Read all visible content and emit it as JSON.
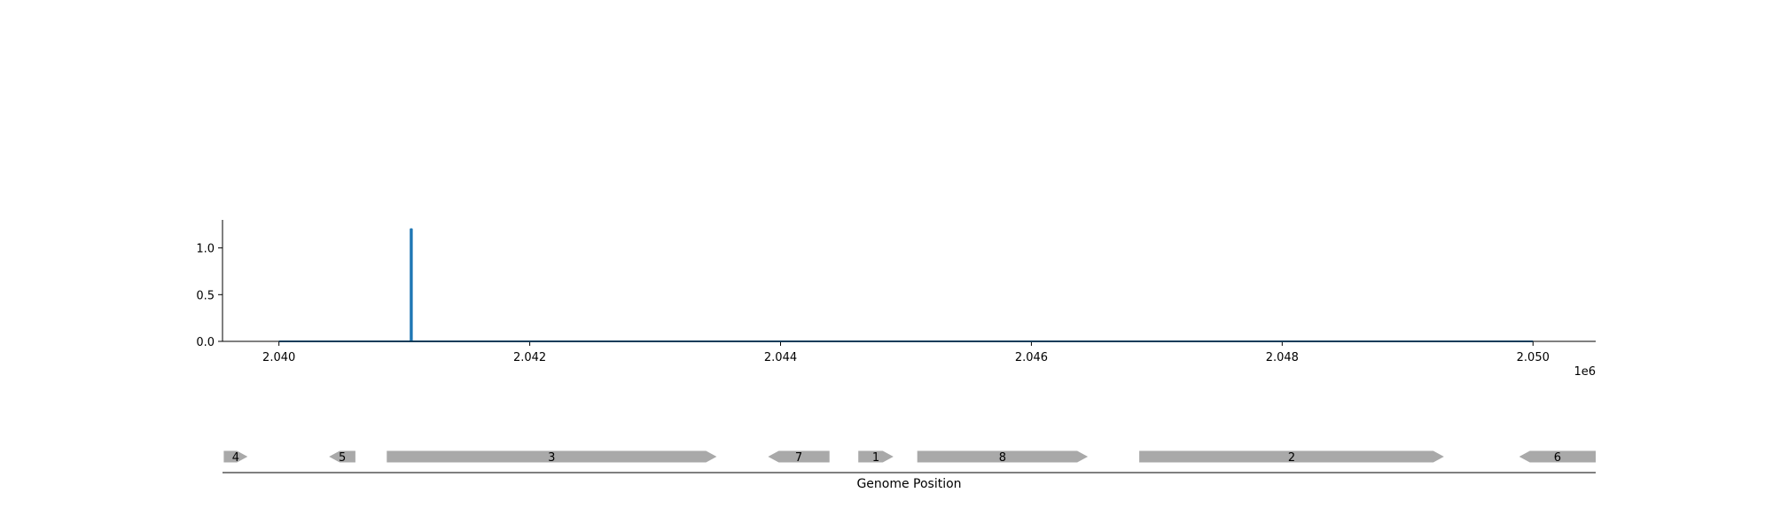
{
  "chart_data": [
    {
      "type": "line",
      "title": "",
      "xlabel": "",
      "ylabel": "",
      "x_offset_label": "1e6",
      "xlim": [
        2.03955,
        2.0505
      ],
      "ylim": [
        0,
        1.3
      ],
      "x_ticks": [
        2.04,
        2.042,
        2.044,
        2.046,
        2.048,
        2.05
      ],
      "x_tick_labels": [
        "2.040",
        "2.042",
        "2.044",
        "2.046",
        "2.048",
        "2.050"
      ],
      "y_ticks": [
        0.0,
        0.5,
        1.0
      ],
      "y_tick_labels": [
        "0.0",
        "0.5",
        "1.0"
      ],
      "color": "#1f77b4",
      "grid": false,
      "series": [
        {
          "x": [
            2.04,
            2.04105,
            2.04105,
            2.04106,
            2.04106,
            2.05
          ],
          "y": [
            0,
            0,
            1.2,
            1.2,
            0,
            0
          ]
        }
      ]
    },
    {
      "type": "gene-track",
      "xlabel": "Genome Position",
      "xlim": [
        2.03955,
        2.0505
      ],
      "color": "#a9a9a9",
      "genes": [
        {
          "label": "4",
          "start": 2.03956,
          "end": 2.03975,
          "strand": "+"
        },
        {
          "label": "5",
          "start": 2.0404,
          "end": 2.04061,
          "strand": "-"
        },
        {
          "label": "3",
          "start": 2.04086,
          "end": 2.04349,
          "strand": "+"
        },
        {
          "label": "7",
          "start": 2.0439,
          "end": 2.04439,
          "strand": "-"
        },
        {
          "label": "1",
          "start": 2.04462,
          "end": 2.0449,
          "strand": "+"
        },
        {
          "label": "8",
          "start": 2.04509,
          "end": 2.04645,
          "strand": "+"
        },
        {
          "label": "2",
          "start": 2.04686,
          "end": 2.04929,
          "strand": "+"
        },
        {
          "label": "6",
          "start": 2.04989,
          "end": 2.0505,
          "strand": "-"
        }
      ]
    }
  ]
}
